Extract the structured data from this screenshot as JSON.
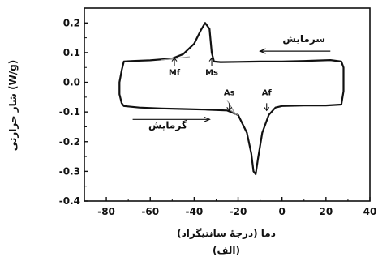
{
  "chart_data": {
    "type": "line",
    "title": "",
    "xlabel": "دما (درجهٔ سانتیگراد)",
    "ylabel": "شار حرارتی (W/g)",
    "caption": "(الف)",
    "xlim": [
      -90,
      40
    ],
    "ylim": [
      -0.4,
      0.25
    ],
    "x_ticks": [
      -80,
      -60,
      -40,
      -20,
      0,
      20,
      40
    ],
    "y_ticks": [
      0.2,
      0.1,
      0.0,
      -0.1,
      -0.2,
      -0.3,
      -0.4
    ],
    "grid": false,
    "series": [
      {
        "name": "",
        "x": [
          27,
          22,
          10,
          0,
          -10,
          -20,
          -28,
          -31,
          -32,
          -33,
          -35,
          -37,
          -40,
          -45,
          -50,
          -60,
          -68,
          -72,
          -73,
          -74,
          -74,
          -73,
          -72,
          -65,
          -55,
          -45,
          -35,
          -25,
          -20,
          -16,
          -14,
          -13,
          -12,
          -11,
          -9,
          -6,
          -3,
          0,
          10,
          20,
          27,
          28,
          28
        ],
        "y": [
          0.07,
          0.075,
          0.072,
          0.07,
          0.07,
          0.069,
          0.068,
          0.07,
          0.1,
          0.18,
          0.2,
          0.175,
          0.13,
          0.095,
          0.08,
          0.074,
          0.072,
          0.07,
          0.04,
          0.0,
          -0.04,
          -0.07,
          -0.08,
          -0.085,
          -0.088,
          -0.09,
          -0.092,
          -0.095,
          -0.11,
          -0.17,
          -0.24,
          -0.3,
          -0.31,
          -0.26,
          -0.17,
          -0.11,
          -0.085,
          -0.08,
          -0.078,
          -0.078,
          -0.075,
          -0.03,
          0.05
        ]
      }
    ],
    "annotations": {
      "cooling_label": "سرمایش",
      "heating_label": "گرمایش",
      "transition_labels": [
        {
          "label": "Mf",
          "x": -49,
          "y": 0.06
        },
        {
          "label": "Ms",
          "x": -32,
          "y": 0.06
        },
        {
          "label": "As",
          "x": -24,
          "y": -0.065
        },
        {
          "label": "Af",
          "x": -7,
          "y": -0.065
        }
      ]
    }
  }
}
